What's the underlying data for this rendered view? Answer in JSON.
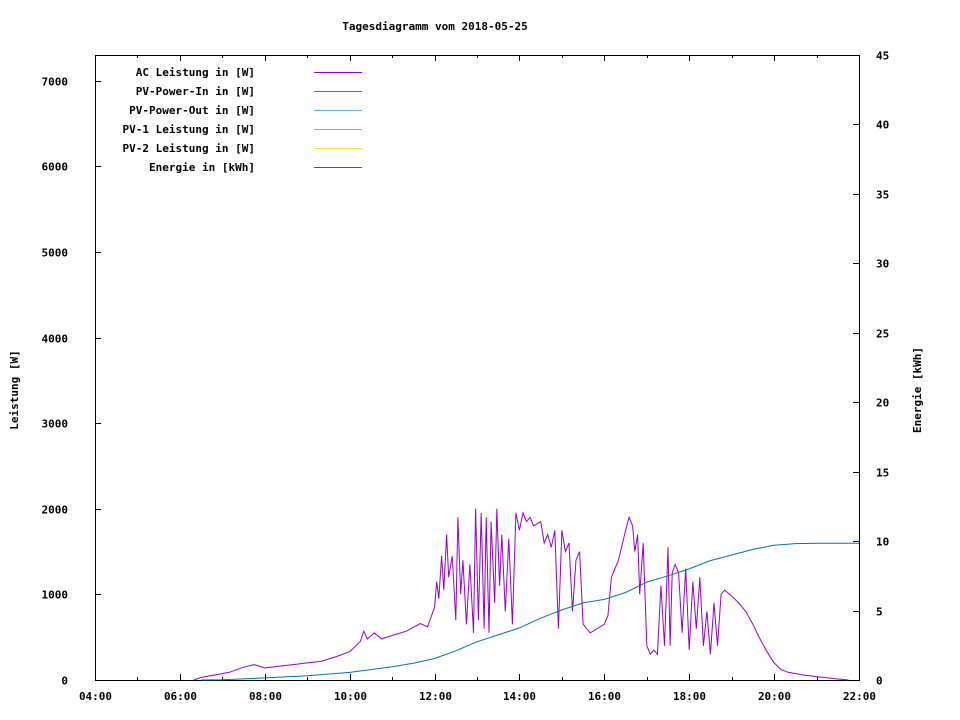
{
  "chart_data": {
    "type": "line",
    "title": "Tagesdiagramm vom 2018-05-25",
    "xlabel": "",
    "ylabel": "Leistung [W]",
    "y2label": "Energie [kWh]",
    "xlim": [
      "04:00",
      "22:00"
    ],
    "ylim": [
      0,
      7300
    ],
    "y2lim": [
      0,
      45
    ],
    "x_ticks": [
      "04:00",
      "06:00",
      "08:00",
      "10:00",
      "12:00",
      "14:00",
      "16:00",
      "18:00",
      "20:00",
      "22:00"
    ],
    "y_ticks": [
      "0",
      "1000",
      "2000",
      "3000",
      "4000",
      "5000",
      "6000",
      "7000"
    ],
    "y2_ticks": [
      "0",
      "5",
      "10",
      "15",
      "20",
      "25",
      "30",
      "35",
      "40",
      "45"
    ],
    "grid": false,
    "legend_position": "top-left",
    "series": [
      {
        "name": "AC Leistung in [W]",
        "axis": "left",
        "color": "#9400d3",
        "points": [
          [
            "06:20",
            0
          ],
          [
            "06:30",
            30
          ],
          [
            "06:50",
            60
          ],
          [
            "07:10",
            90
          ],
          [
            "07:30",
            150
          ],
          [
            "07:45",
            180
          ],
          [
            "08:00",
            140
          ],
          [
            "08:20",
            160
          ],
          [
            "08:40",
            180
          ],
          [
            "09:00",
            200
          ],
          [
            "09:20",
            220
          ],
          [
            "09:40",
            270
          ],
          [
            "10:00",
            330
          ],
          [
            "10:15",
            450
          ],
          [
            "10:20",
            570
          ],
          [
            "10:25",
            480
          ],
          [
            "10:35",
            550
          ],
          [
            "10:45",
            480
          ],
          [
            "11:00",
            520
          ],
          [
            "11:20",
            570
          ],
          [
            "11:40",
            660
          ],
          [
            "11:50",
            620
          ],
          [
            "12:00",
            850
          ],
          [
            "12:03",
            1150
          ],
          [
            "12:06",
            950
          ],
          [
            "12:10",
            1450
          ],
          [
            "12:13",
            1050
          ],
          [
            "12:17",
            1700
          ],
          [
            "12:20",
            1200
          ],
          [
            "12:25",
            1450
          ],
          [
            "12:30",
            700
          ],
          [
            "12:33",
            1900
          ],
          [
            "12:37",
            1000
          ],
          [
            "12:40",
            1400
          ],
          [
            "12:45",
            650
          ],
          [
            "12:50",
            1350
          ],
          [
            "12:55",
            550
          ],
          [
            "12:58",
            2000
          ],
          [
            "13:02",
            700
          ],
          [
            "13:06",
            1950
          ],
          [
            "13:10",
            600
          ],
          [
            "13:13",
            1900
          ],
          [
            "13:17",
            550
          ],
          [
            "13:20",
            1850
          ],
          [
            "13:25",
            900
          ],
          [
            "13:28",
            2000
          ],
          [
            "13:32",
            1100
          ],
          [
            "13:35",
            1700
          ],
          [
            "13:40",
            800
          ],
          [
            "13:45",
            1650
          ],
          [
            "13:50",
            650
          ],
          [
            "13:55",
            1950
          ],
          [
            "14:00",
            1750
          ],
          [
            "14:05",
            1950
          ],
          [
            "14:10",
            1850
          ],
          [
            "14:15",
            1900
          ],
          [
            "14:20",
            1800
          ],
          [
            "14:30",
            1850
          ],
          [
            "14:35",
            1600
          ],
          [
            "14:40",
            1700
          ],
          [
            "14:45",
            1550
          ],
          [
            "14:50",
            1750
          ],
          [
            "14:55",
            600
          ],
          [
            "15:00",
            1750
          ],
          [
            "15:05",
            1500
          ],
          [
            "15:10",
            1600
          ],
          [
            "15:15",
            800
          ],
          [
            "15:20",
            1400
          ],
          [
            "15:25",
            1500
          ],
          [
            "15:30",
            650
          ],
          [
            "15:40",
            550
          ],
          [
            "15:50",
            600
          ],
          [
            "16:00",
            650
          ],
          [
            "16:05",
            750
          ],
          [
            "16:10",
            1200
          ],
          [
            "16:20",
            1400
          ],
          [
            "16:30",
            1750
          ],
          [
            "16:35",
            1900
          ],
          [
            "16:40",
            1800
          ],
          [
            "16:43",
            1500
          ],
          [
            "16:47",
            1700
          ],
          [
            "16:50",
            1000
          ],
          [
            "16:55",
            1600
          ],
          [
            "17:00",
            400
          ],
          [
            "17:05",
            300
          ],
          [
            "17:10",
            350
          ],
          [
            "17:15",
            300
          ],
          [
            "17:20",
            1100
          ],
          [
            "17:25",
            400
          ],
          [
            "17:30",
            1550
          ],
          [
            "17:33",
            400
          ],
          [
            "17:36",
            1250
          ],
          [
            "17:40",
            1350
          ],
          [
            "17:45",
            1250
          ],
          [
            "17:50",
            550
          ],
          [
            "17:55",
            1300
          ],
          [
            "18:00",
            350
          ],
          [
            "18:05",
            1150
          ],
          [
            "18:10",
            600
          ],
          [
            "18:15",
            1200
          ],
          [
            "18:20",
            400
          ],
          [
            "18:25",
            800
          ],
          [
            "18:30",
            300
          ],
          [
            "18:35",
            900
          ],
          [
            "18:40",
            400
          ],
          [
            "18:45",
            1000
          ],
          [
            "18:50",
            1050
          ],
          [
            "19:00",
            980
          ],
          [
            "19:10",
            900
          ],
          [
            "19:20",
            800
          ],
          [
            "19:30",
            650
          ],
          [
            "19:40",
            480
          ],
          [
            "19:50",
            330
          ],
          [
            "20:00",
            200
          ],
          [
            "20:10",
            120
          ],
          [
            "20:20",
            90
          ],
          [
            "20:40",
            60
          ],
          [
            "21:00",
            40
          ],
          [
            "21:20",
            20
          ],
          [
            "21:40",
            5
          ],
          [
            "21:45",
            0
          ]
        ]
      },
      {
        "name": "PV-Power-In in [W]",
        "axis": "left",
        "color": "#009e73",
        "points": []
      },
      {
        "name": "PV-Power-Out in [W]",
        "axis": "left",
        "color": "#56b4e9",
        "points": []
      },
      {
        "name": "PV-1 Leistung in [W]",
        "axis": "left",
        "color": "#e69f00",
        "points": []
      },
      {
        "name": "PV-2 Leistung in [W]",
        "axis": "left",
        "color": "#f0e442",
        "points": []
      },
      {
        "name": "Energie in [kWh]",
        "axis": "right",
        "color": "#0072b2",
        "points": [
          [
            "06:30",
            0
          ],
          [
            "07:00",
            0.02
          ],
          [
            "08:00",
            0.15
          ],
          [
            "09:00",
            0.3
          ],
          [
            "10:00",
            0.55
          ],
          [
            "11:00",
            0.95
          ],
          [
            "11:30",
            1.2
          ],
          [
            "12:00",
            1.55
          ],
          [
            "12:30",
            2.1
          ],
          [
            "13:00",
            2.75
          ],
          [
            "13:30",
            3.25
          ],
          [
            "14:00",
            3.75
          ],
          [
            "14:30",
            4.45
          ],
          [
            "15:00",
            5.05
          ],
          [
            "15:30",
            5.55
          ],
          [
            "16:00",
            5.8
          ],
          [
            "16:30",
            6.3
          ],
          [
            "17:00",
            7.05
          ],
          [
            "17:30",
            7.5
          ],
          [
            "18:00",
            8.0
          ],
          [
            "18:30",
            8.6
          ],
          [
            "19:00",
            9.0
          ],
          [
            "19:30",
            9.4
          ],
          [
            "20:00",
            9.7
          ],
          [
            "20:30",
            9.82
          ],
          [
            "21:00",
            9.85
          ],
          [
            "22:00",
            9.85
          ]
        ]
      }
    ]
  }
}
